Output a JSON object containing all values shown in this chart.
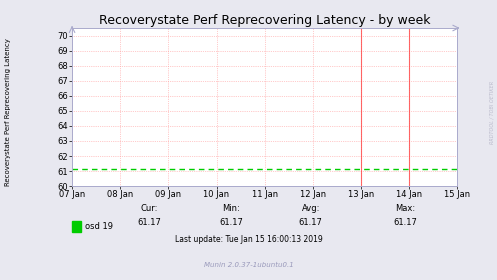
{
  "title": "Recoverystate Perf Reprecovering Latency - by week",
  "ylabel": "Recoverystate Perf Reprecovering Latency",
  "right_label": "RRDTOOL / TOBI OETIKER",
  "background_color": "#e8e8f0",
  "plot_bg_color": "#ffffff",
  "grid_color_h": "#ff9999",
  "grid_color_v": "#ffcccc",
  "line_color": "#00cc00",
  "line_value": 61.17,
  "ylim": [
    60,
    70.5
  ],
  "yticks": [
    60,
    61,
    62,
    63,
    64,
    65,
    66,
    67,
    68,
    69,
    70
  ],
  "xtick_labels": [
    "07 Jan",
    "08 Jan",
    "09 Jan",
    "10 Jan",
    "11 Jan",
    "12 Jan",
    "13 Jan",
    "14 Jan",
    "15 Jan"
  ],
  "xtick_positions": [
    0,
    1,
    2,
    3,
    4,
    5,
    6,
    7,
    8
  ],
  "xlim": [
    0,
    8
  ],
  "vline_positions": [
    6,
    7
  ],
  "legend_label": "osd 19",
  "cur": "61.17",
  "min_val": "61.17",
  "avg": "61.17",
  "max_val": "61.17",
  "last_update": "Last update: Tue Jan 15 16:00:13 2019",
  "munin_label": "Munin 2.0.37-1ubuntu0.1",
  "title_fontsize": 9,
  "axis_fontsize": 6,
  "ylabel_fontsize": 5,
  "small_fontsize": 5.5,
  "legend_sq_color": "#00cc00",
  "spine_color": "#aaaacc",
  "arrow_color": "#aaaacc"
}
